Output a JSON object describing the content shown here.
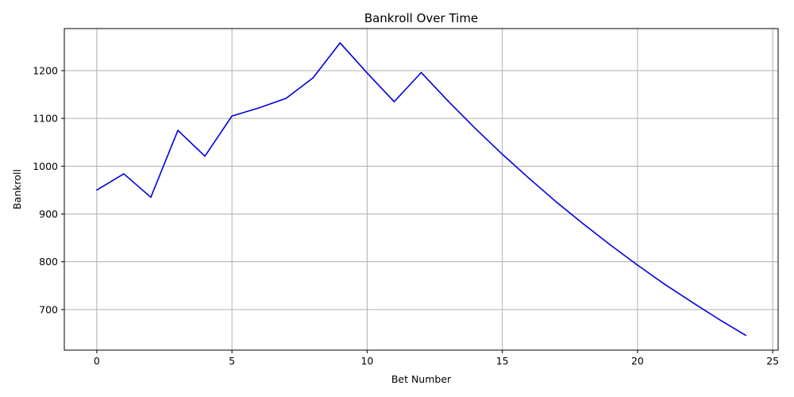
{
  "chart_data": {
    "type": "line",
    "title": "Bankroll Over Time",
    "xlabel": "Bet Number",
    "ylabel": "Bankroll",
    "xlim": [
      -1.2,
      25.2
    ],
    "ylim": [
      615,
      1288
    ],
    "xticks": [
      0,
      5,
      10,
      15,
      20,
      25
    ],
    "yticks": [
      700,
      800,
      900,
      1000,
      1100,
      1200
    ],
    "grid": true,
    "series": [
      {
        "color": "#0000dd",
        "x": [
          0,
          1,
          2,
          3,
          4,
          5,
          6,
          7,
          8,
          9,
          10,
          11,
          12,
          13,
          14,
          15,
          16,
          17,
          18,
          19,
          20,
          21,
          22,
          23,
          24
        ],
        "y": [
          950,
          984,
          935,
          1075,
          1021,
          1105,
          1122,
          1142,
          1185,
          1258,
          1195,
          1135,
          1196,
          1136,
          1079,
          1025,
          974,
          925,
          879,
          835,
          793,
          753,
          716,
          680,
          646
        ]
      }
    ]
  }
}
